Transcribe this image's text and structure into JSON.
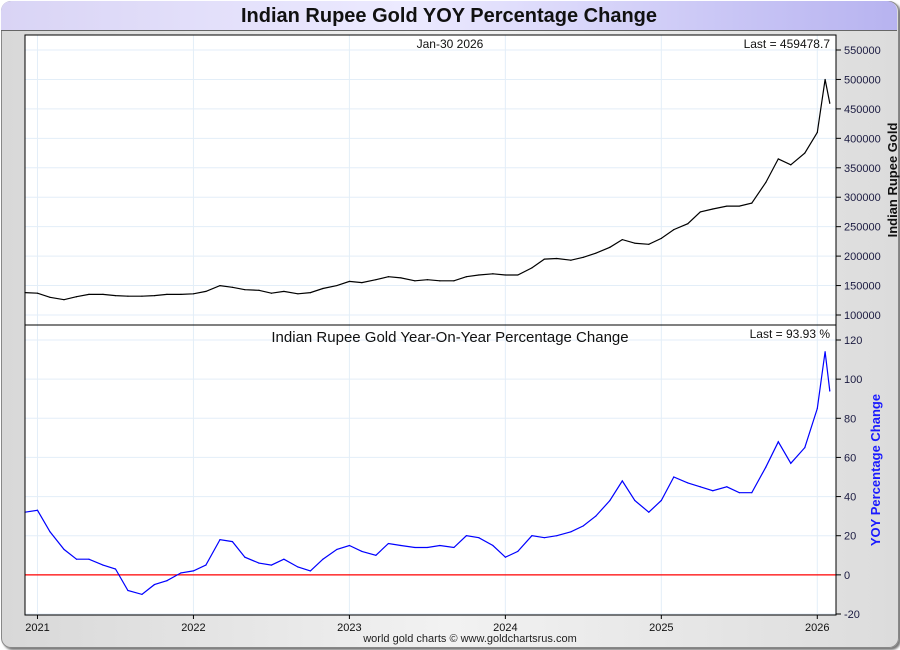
{
  "title": "Indian Rupee Gold YOY Percentage Change",
  "credit": "world gold charts © www.goldchartsrus.com",
  "chart_data": [
    {
      "type": "line",
      "title": "",
      "date_label": "Jan-30  2026",
      "last_label": "Last = 459478.7",
      "ylabel": "Indian Rupee Gold",
      "ylim": [
        90000,
        570000
      ],
      "yticks": [
        100000,
        150000,
        200000,
        250000,
        300000,
        350000,
        400000,
        450000,
        500000,
        550000
      ],
      "color": "#000000",
      "x": [
        2020.92,
        2021.0,
        2021.08,
        2021.17,
        2021.25,
        2021.33,
        2021.42,
        2021.5,
        2021.58,
        2021.67,
        2021.75,
        2021.83,
        2021.92,
        2022.0,
        2022.08,
        2022.17,
        2022.25,
        2022.33,
        2022.42,
        2022.5,
        2022.58,
        2022.67,
        2022.75,
        2022.83,
        2022.92,
        2023.0,
        2023.08,
        2023.17,
        2023.25,
        2023.33,
        2023.42,
        2023.5,
        2023.58,
        2023.67,
        2023.75,
        2023.83,
        2023.92,
        2024.0,
        2024.08,
        2024.17,
        2024.25,
        2024.33,
        2024.42,
        2024.5,
        2024.58,
        2024.67,
        2024.75,
        2024.83,
        2024.92,
        2025.0,
        2025.08,
        2025.17,
        2025.25,
        2025.33,
        2025.42,
        2025.5,
        2025.58,
        2025.67,
        2025.75,
        2025.83,
        2025.92,
        2026.0,
        2026.05,
        2026.08
      ],
      "values": [
        138000,
        137000,
        130000,
        126000,
        131000,
        135000,
        135000,
        133000,
        132000,
        132000,
        133000,
        135000,
        135000,
        136000,
        140000,
        150000,
        147000,
        143000,
        142000,
        137000,
        140000,
        136000,
        138000,
        145000,
        150000,
        157000,
        155000,
        160000,
        165000,
        163000,
        158000,
        160000,
        158000,
        158000,
        165000,
        168000,
        170000,
        168000,
        168000,
        180000,
        195000,
        196000,
        193000,
        198000,
        205000,
        215000,
        228000,
        222000,
        220000,
        230000,
        245000,
        255000,
        275000,
        280000,
        285000,
        285000,
        290000,
        325000,
        365000,
        355000,
        375000,
        410000,
        500000,
        459479
      ]
    },
    {
      "type": "line",
      "title": "Indian Rupee Gold Year-On-Year Percentage Change",
      "last_label": "Last = 93.93 %",
      "ylabel": "YOY Percentage Change",
      "ylim": [
        -20,
        120
      ],
      "yticks": [
        -20,
        0,
        20,
        40,
        60,
        80,
        100,
        120
      ],
      "xlim": [
        2020.92,
        2026.12
      ],
      "xticks": [
        "2021",
        "2022",
        "2023",
        "2024",
        "2025",
        "2026"
      ],
      "color": "#0000ff",
      "reference_line": {
        "value": 0,
        "color": "#ff0000"
      },
      "x": [
        2020.92,
        2021.0,
        2021.08,
        2021.17,
        2021.25,
        2021.33,
        2021.42,
        2021.5,
        2021.58,
        2021.67,
        2021.75,
        2021.83,
        2021.92,
        2022.0,
        2022.08,
        2022.17,
        2022.25,
        2022.33,
        2022.42,
        2022.5,
        2022.58,
        2022.67,
        2022.75,
        2022.83,
        2022.92,
        2023.0,
        2023.08,
        2023.17,
        2023.25,
        2023.33,
        2023.42,
        2023.5,
        2023.58,
        2023.67,
        2023.75,
        2023.83,
        2023.92,
        2024.0,
        2024.08,
        2024.17,
        2024.25,
        2024.33,
        2024.42,
        2024.5,
        2024.58,
        2024.67,
        2024.75,
        2024.83,
        2024.92,
        2025.0,
        2025.08,
        2025.17,
        2025.25,
        2025.33,
        2025.42,
        2025.5,
        2025.58,
        2025.67,
        2025.75,
        2025.83,
        2025.92,
        2026.0,
        2026.05,
        2026.08
      ],
      "values": [
        32,
        33,
        22,
        13,
        8,
        8,
        5,
        3,
        -8,
        -10,
        -5,
        -3,
        1,
        2,
        5,
        18,
        17,
        9,
        6,
        5,
        8,
        4,
        2,
        8,
        13,
        15,
        12,
        10,
        16,
        15,
        14,
        14,
        15,
        14,
        20,
        19,
        15,
        9,
        12,
        20,
        19,
        20,
        22,
        25,
        30,
        38,
        48,
        38,
        32,
        38,
        50,
        47,
        45,
        43,
        45,
        42,
        42,
        55,
        68,
        57,
        65,
        85,
        114,
        93.93
      ]
    }
  ]
}
